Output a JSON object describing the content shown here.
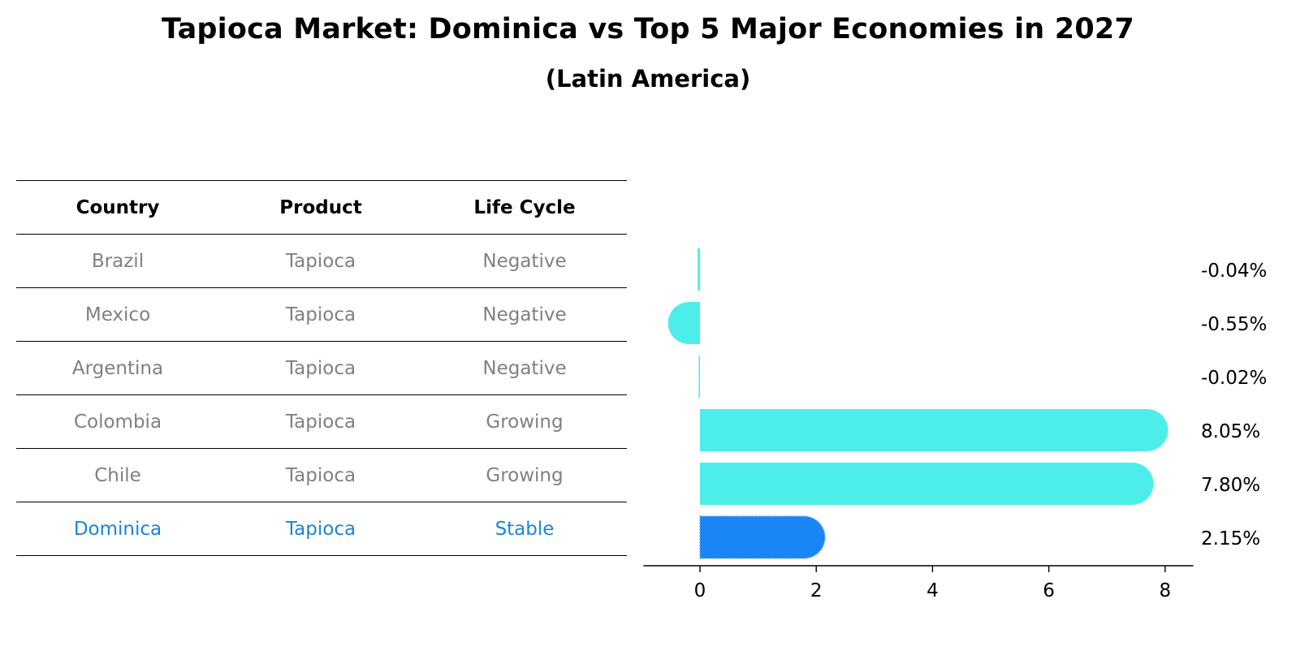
{
  "title": "Tapioca Market: Dominica vs Top 5 Major Economies in 2027",
  "subtitle": "(Latin America)",
  "table": {
    "headers": [
      "Country",
      "Product",
      "Life Cycle"
    ],
    "rows": [
      [
        "Brazil",
        "Tapioca",
        "Negative"
      ],
      [
        "Mexico",
        "Tapioca",
        "Negative"
      ],
      [
        "Argentina",
        "Tapioca",
        "Negative"
      ],
      [
        "Colombia",
        "Tapioca",
        "Growing"
      ],
      [
        "Chile",
        "Tapioca",
        "Growing"
      ],
      [
        "Dominica",
        "Tapioca",
        "Stable"
      ]
    ]
  },
  "colors": {
    "bar": "#4deeea",
    "highlight": "#1a85f5",
    "highlight_text": "#1a85d9",
    "muted_text": "#808080"
  },
  "chart_data": {
    "type": "bar",
    "orientation": "horizontal",
    "categories": [
      "Brazil",
      "Mexico",
      "Argentina",
      "Colombia",
      "Chile",
      "Dominica"
    ],
    "values": [
      -0.04,
      -0.55,
      -0.02,
      8.05,
      7.8,
      2.15
    ],
    "value_labels": [
      "-0.04%",
      "-0.55%",
      "-0.02%",
      "8.05%",
      "7.80%",
      "2.15%"
    ],
    "highlight": "Dominica",
    "xticks": [
      0,
      2,
      4,
      6,
      8
    ],
    "xlim": [
      -1,
      8.5
    ],
    "grid": false
  }
}
